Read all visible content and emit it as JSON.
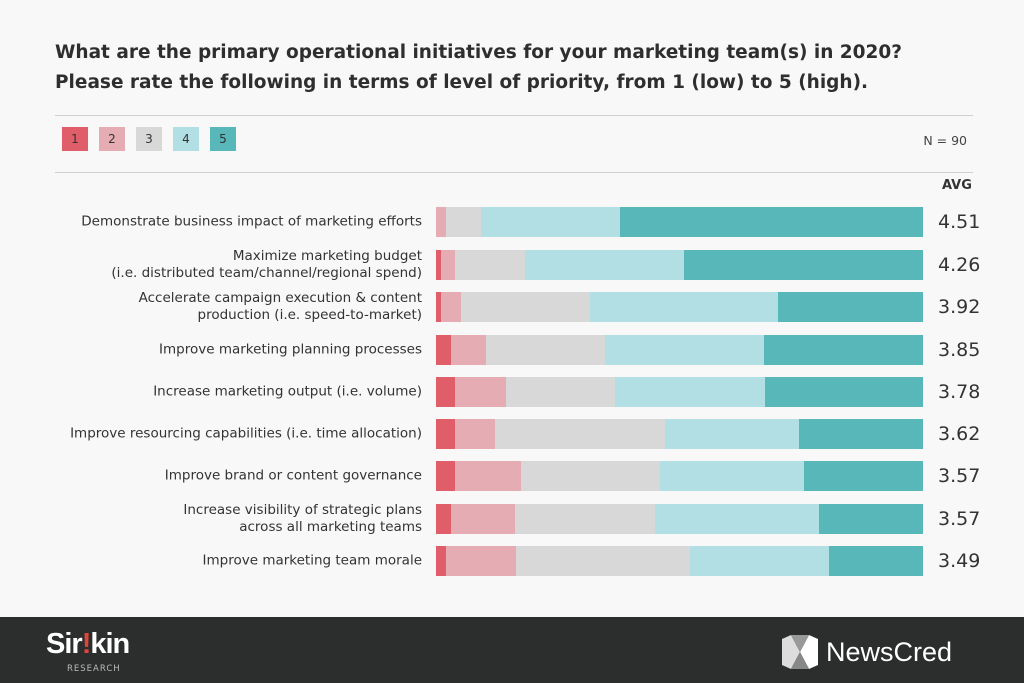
{
  "title_line1": "What are the primary operational initiatives for your marketing team(s) in 2020?",
  "title_line2": "Please rate the following in terms of level of priority, from 1 (low) to 5 (high).",
  "n_label": "N = 90",
  "avg_header": "AVG",
  "colors": {
    "1": "#e05d6a",
    "2": "#e5adb3",
    "3": "#d8d8d8",
    "4": "#b1dfe4",
    "5": "#57b7b9"
  },
  "chart_data": {
    "type": "bar",
    "orientation": "horizontal-stacked-100",
    "legend": [
      "1",
      "2",
      "3",
      "4",
      "5"
    ],
    "legend_placement": "top-left",
    "unit": "percent of respondents",
    "categories": [
      "Demonstrate business impact of marketing efforts",
      "Maximize marketing budget\n(i.e. distributed team/channel/regional spend)",
      "Accelerate campaign execution & content\nproduction (i.e. speed-to-market)",
      "Improve marketing planning processes",
      "Increase marketing output (i.e. volume)",
      "Improve resourcing capabilities (i.e. time allocation)",
      "Improve brand or content governance",
      "Increase visibility of strategic plans\nacross all marketing teams",
      "Improve marketing team morale"
    ],
    "series": [
      {
        "name": "1",
        "values": [
          0,
          1.0,
          1.0,
          3.1,
          4.0,
          4.0,
          4.0,
          3.1,
          2.1
        ]
      },
      {
        "name": "2",
        "values": [
          2.1,
          2.9,
          4.1,
          7.1,
          10.3,
          8.2,
          13.4,
          13.2,
          14.3
        ]
      },
      {
        "name": "3",
        "values": [
          7.1,
          14.4,
          26.5,
          24.5,
          22.5,
          34.8,
          28.6,
          28.6,
          35.7
        ]
      },
      {
        "name": "4",
        "values": [
          28.6,
          32.7,
          38.8,
          32.7,
          30.7,
          27.6,
          29.6,
          33.7,
          28.6
        ]
      },
      {
        "name": "5",
        "values": [
          62.2,
          49.0,
          29.7,
          32.7,
          32.5,
          25.4,
          24.4,
          21.4,
          19.3
        ]
      }
    ],
    "avg": [
      "4.51",
      "4.26",
      "3.92",
      "3.85",
      "3.78",
      "3.62",
      "3.57",
      "3.57",
      "3.49"
    ],
    "xlim": [
      0,
      100
    ]
  },
  "footer": {
    "left_logo": "Sirkin",
    "left_logo_sub": "RESEARCH",
    "right_logo": "NewsCred"
  }
}
